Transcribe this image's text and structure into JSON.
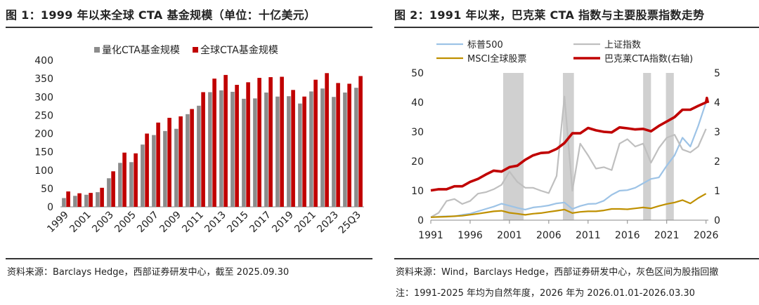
{
  "chart_data": [
    {
      "type": "bar",
      "title": "图 1：1999 年以来全球 CTA 基金规模（单位：十亿美元）",
      "categories": [
        "1999",
        "2000",
        "2001",
        "2002",
        "2003",
        "2004",
        "2005",
        "2006",
        "2007",
        "2008",
        "2009",
        "2010",
        "2011",
        "2012",
        "2013",
        "2014",
        "2015",
        "2016",
        "2017",
        "2018",
        "2019",
        "2020",
        "2021",
        "2022",
        "2023",
        "2024",
        "25Q3"
      ],
      "x_tick_labels": [
        "1999",
        "2001",
        "2003",
        "2005",
        "2007",
        "2009",
        "2011",
        "2013",
        "2015",
        "2017",
        "2019",
        "2021",
        "2023",
        "25Q3"
      ],
      "series": [
        {
          "name": "量化CTA基金规模",
          "color": "#8c8c8c",
          "values": [
            24,
            30,
            33,
            40,
            78,
            120,
            122,
            170,
            196,
            207,
            213,
            253,
            276,
            313,
            318,
            314,
            295,
            296,
            312,
            301,
            302,
            282,
            315,
            323,
            300,
            312,
            325
          ]
        },
        {
          "name": "全球CTA基金规模",
          "color": "#c00000",
          "values": [
            42,
            37,
            38,
            52,
            97,
            148,
            146,
            200,
            230,
            243,
            247,
            267,
            313,
            350,
            360,
            333,
            340,
            352,
            354,
            355,
            319,
            301,
            347,
            365,
            338,
            336,
            357
          ]
        }
      ],
      "yticks": [
        0,
        50,
        100,
        150,
        200,
        250,
        300,
        350,
        400
      ],
      "ylim": [
        0,
        400
      ],
      "legend": "top-left",
      "source": "资料来源：Barclays Hedge，西部证券研发中心，截至 2025.09.30"
    },
    {
      "type": "line",
      "title": "图 2：1991 年以来，巴克莱 CTA 指数与主要股票指数走势",
      "x_ticks": [
        1991,
        1996,
        2001,
        2006,
        2011,
        2016,
        2021,
        2026
      ],
      "xlim": [
        1991,
        2026.3
      ],
      "y_left_ticks": [
        0,
        10,
        20,
        30,
        40,
        50
      ],
      "y_left_lim": [
        0,
        50
      ],
      "y_right_ticks": [
        0,
        1,
        2,
        3,
        4,
        5
      ],
      "y_right_lim": [
        0,
        5
      ],
      "shaded_periods": [
        [
          2000.2,
          2002.8
        ],
        [
          2007.8,
          2009.2
        ],
        [
          2018.0,
          2019.0
        ],
        [
          2020.9,
          2021.9
        ]
      ],
      "series": [
        {
          "name": "标普500",
          "color": "#9dc3e6",
          "axis": "left",
          "points": [
            [
              1991,
              1
            ],
            [
              1992,
              1.2
            ],
            [
              1993,
              1.3
            ],
            [
              1994,
              1.3
            ],
            [
              1995,
              1.8
            ],
            [
              1996,
              2.2
            ],
            [
              1997,
              3
            ],
            [
              1998,
              3.8
            ],
            [
              1999,
              4.6
            ],
            [
              2000,
              5.6
            ],
            [
              2001,
              4.9
            ],
            [
              2002,
              4.2
            ],
            [
              2003,
              3.6
            ],
            [
              2004,
              4.3
            ],
            [
              2005,
              4.6
            ],
            [
              2006,
              5
            ],
            [
              2007,
              5.7
            ],
            [
              2008,
              6
            ],
            [
              2009,
              3.8
            ],
            [
              2010,
              4.8
            ],
            [
              2011,
              5.5
            ],
            [
              2012,
              5.6
            ],
            [
              2013,
              6.6
            ],
            [
              2014,
              8.6
            ],
            [
              2015,
              10
            ],
            [
              2016,
              10.2
            ],
            [
              2017,
              11
            ],
            [
              2018,
              12.5
            ],
            [
              2019,
              14
            ],
            [
              2020,
              14.5
            ],
            [
              2021,
              18.5
            ],
            [
              2022,
              22
            ],
            [
              2023,
              28
            ],
            [
              2024,
              25
            ],
            [
              2025,
              32
            ],
            [
              2026,
              40
            ]
          ]
        },
        {
          "name": "上证指数",
          "color": "#bfbfbf",
          "axis": "left",
          "points": [
            [
              1991,
              1
            ],
            [
              1992,
              2.5
            ],
            [
              1993,
              6.5
            ],
            [
              1994,
              7.2
            ],
            [
              1995,
              5.5
            ],
            [
              1996,
              6.5
            ],
            [
              1997,
              9
            ],
            [
              1998,
              9.5
            ],
            [
              1999,
              10.5
            ],
            [
              2000,
              12
            ],
            [
              2001,
              16.5
            ],
            [
              2002,
              13
            ],
            [
              2003,
              11
            ],
            [
              2004,
              11
            ],
            [
              2005,
              10
            ],
            [
              2006,
              9.2
            ],
            [
              2007,
              15
            ],
            [
              2008,
              42
            ],
            [
              2009,
              10
            ],
            [
              2010,
              26
            ],
            [
              2011,
              22
            ],
            [
              2012,
              17.5
            ],
            [
              2013,
              18
            ],
            [
              2014,
              17
            ],
            [
              2015,
              26
            ],
            [
              2016,
              27.5
            ],
            [
              2017,
              25
            ],
            [
              2018,
              26
            ],
            [
              2019,
              19.5
            ],
            [
              2020,
              24.5
            ],
            [
              2021,
              28
            ],
            [
              2022,
              29
            ],
            [
              2023,
              24
            ],
            [
              2024,
              23
            ],
            [
              2025,
              25
            ],
            [
              2026,
              31
            ]
          ]
        },
        {
          "name": "MSCI全球股票",
          "color": "#bf9000",
          "axis": "left",
          "points": [
            [
              1991,
              1
            ],
            [
              1993,
              1.2
            ],
            [
              1995,
              1.5
            ],
            [
              1997,
              2.2
            ],
            [
              1998,
              2.6
            ],
            [
              1999,
              3
            ],
            [
              2000,
              3.2
            ],
            [
              2001,
              2.5
            ],
            [
              2002,
              2.2
            ],
            [
              2003,
              1.8
            ],
            [
              2004,
              2.2
            ],
            [
              2005,
              2.4
            ],
            [
              2006,
              2.8
            ],
            [
              2007,
              3.2
            ],
            [
              2008,
              3.6
            ],
            [
              2009,
              2.4
            ],
            [
              2010,
              2.8
            ],
            [
              2011,
              3
            ],
            [
              2012,
              3
            ],
            [
              2013,
              3.3
            ],
            [
              2014,
              3.8
            ],
            [
              2015,
              3.8
            ],
            [
              2016,
              3.7
            ],
            [
              2017,
              4
            ],
            [
              2018,
              4.3
            ],
            [
              2019,
              4
            ],
            [
              2020,
              4.8
            ],
            [
              2021,
              5.5
            ],
            [
              2022,
              6
            ],
            [
              2023,
              6.8
            ],
            [
              2024,
              5.7
            ],
            [
              2025,
              7.5
            ],
            [
              2026,
              9
            ]
          ]
        },
        {
          "name": "巴克莱CTA指数(右轴)",
          "color": "#c00000",
          "axis": "right",
          "points": [
            [
              1991,
              1.01
            ],
            [
              1992,
              1.05
            ],
            [
              1993,
              1.05
            ],
            [
              1994,
              1.15
            ],
            [
              1995,
              1.15
            ],
            [
              1996,
              1.3
            ],
            [
              1997,
              1.4
            ],
            [
              1998,
              1.55
            ],
            [
              1999,
              1.68
            ],
            [
              2000,
              1.65
            ],
            [
              2001,
              1.8
            ],
            [
              2002,
              1.85
            ],
            [
              2003,
              2.05
            ],
            [
              2004,
              2.2
            ],
            [
              2005,
              2.28
            ],
            [
              2006,
              2.3
            ],
            [
              2007,
              2.42
            ],
            [
              2008,
              2.62
            ],
            [
              2009,
              2.95
            ],
            [
              2010,
              2.95
            ],
            [
              2011,
              3.13
            ],
            [
              2012,
              3.05
            ],
            [
              2013,
              3
            ],
            [
              2014,
              2.98
            ],
            [
              2015,
              3.15
            ],
            [
              2016,
              3.12
            ],
            [
              2017,
              3.08
            ],
            [
              2018,
              3.1
            ],
            [
              2019,
              3.02
            ],
            [
              2020,
              3.2
            ],
            [
              2021,
              3.35
            ],
            [
              2022,
              3.5
            ],
            [
              2023,
              3.75
            ],
            [
              2024,
              3.75
            ],
            [
              2025,
              3.88
            ],
            [
              2026,
              4.0
            ],
            [
              2026.1,
              4.15
            ],
            [
              2026.25,
              3.98
            ]
          ]
        }
      ],
      "legend": "top",
      "source_lines": [
        "资料来源：Wind，Barclays Hedge，西部证券研发中心，灰色区间为股指回撤",
        "注：1991-2025 年均为自然年度，2026 年为 2026.01.01-2026.03.30"
      ]
    }
  ]
}
